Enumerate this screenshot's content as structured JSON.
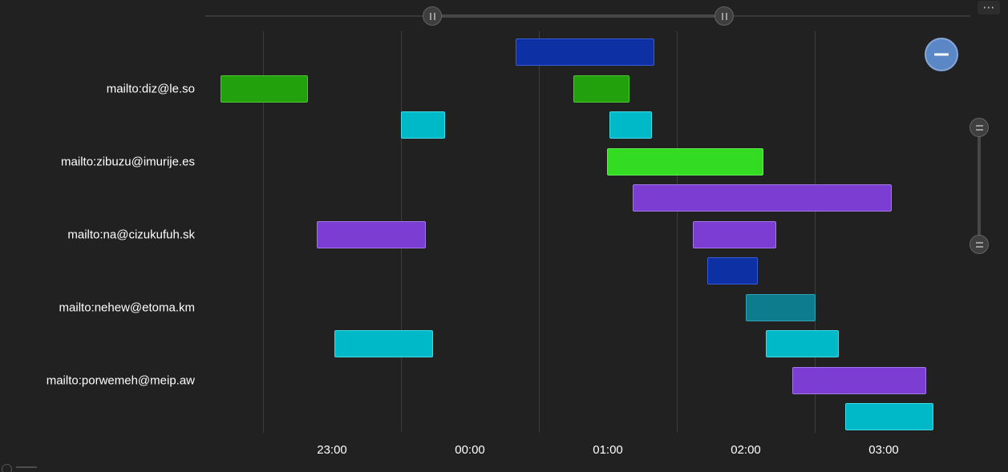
{
  "chart_data": {
    "type": "gantt",
    "title": "",
    "rows": [
      "mailto:diz@le.so",
      "mailto:zibuzu@imurije.es",
      "mailto:na@cizukufuh.sk",
      "mailto:nehew@etoma.km",
      "mailto:porwemeh@meip.aw"
    ],
    "label_lanes": [
      1,
      3,
      5,
      7,
      9
    ],
    "x_axis": {
      "ticks": [
        {
          "label": "23:00",
          "hour": 23
        },
        {
          "label": "00:00",
          "hour": 24
        },
        {
          "label": "01:00",
          "hour": 25
        },
        {
          "label": "02:00",
          "hour": 26
        },
        {
          "label": "03:00",
          "hour": 27
        }
      ],
      "gridline_hours": [
        22.5,
        23.5,
        24.5,
        25.5,
        26.5
      ],
      "visible_hour_range": [
        22.08,
        27.63
      ],
      "grid": true
    },
    "palette": {
      "blue": {
        "fill": "#0D31A5",
        "border": "#3B5BD6"
      },
      "green": {
        "fill": "#23A10D",
        "border": "#4CC935"
      },
      "cyan": {
        "fill": "#00B9C8",
        "border": "#3FDCE8"
      },
      "lime": {
        "fill": "#33DC23",
        "border": "#63EF54"
      },
      "purple": {
        "fill": "#7C3ED2",
        "border": "#A277E6"
      },
      "teal": {
        "fill": "#0D7C8C",
        "border": "#2FA3B4"
      }
    },
    "bars": [
      {
        "lane": 0,
        "color": "blue",
        "start": "00:20",
        "end": "01:20",
        "start_h": 24.331,
        "end_h": 25.337
      },
      {
        "lane": 1,
        "color": "green",
        "start": "22:12",
        "end": "22:50",
        "start_h": 22.192,
        "end_h": 22.826
      },
      {
        "lane": 1,
        "color": "green",
        "start": "00:45",
        "end": "01:09",
        "start_h": 24.75,
        "end_h": 25.157
      },
      {
        "lane": 2,
        "color": "cyan",
        "start": "23:30",
        "end": "23:49",
        "start_h": 23.5,
        "end_h": 23.82
      },
      {
        "lane": 2,
        "color": "cyan",
        "start": "01:01",
        "end": "01:19",
        "start_h": 25.012,
        "end_h": 25.32
      },
      {
        "lane": 3,
        "color": "lime",
        "start": "01:00",
        "end": "02:08",
        "start_h": 24.994,
        "end_h": 26.128
      },
      {
        "lane": 4,
        "color": "purple",
        "start": "01:11",
        "end": "03:03",
        "start_h": 25.18,
        "end_h": 27.058
      },
      {
        "lane": 5,
        "color": "purple",
        "start": "22:53",
        "end": "23:41",
        "start_h": 22.89,
        "end_h": 23.68
      },
      {
        "lane": 5,
        "color": "purple",
        "start": "01:37",
        "end": "02:13",
        "start_h": 25.616,
        "end_h": 26.221
      },
      {
        "lane": 6,
        "color": "blue",
        "start": "01:43",
        "end": "02:05",
        "start_h": 25.721,
        "end_h": 26.087
      },
      {
        "lane": 7,
        "color": "teal",
        "start": "02:00",
        "end": "02:30",
        "start_h": 26.0,
        "end_h": 26.506
      },
      {
        "lane": 8,
        "color": "cyan",
        "start": "23:01",
        "end": "23:44",
        "start_h": 23.017,
        "end_h": 23.733
      },
      {
        "lane": 8,
        "color": "cyan",
        "start": "02:09",
        "end": "02:40",
        "start_h": 26.145,
        "end_h": 26.674
      },
      {
        "lane": 9,
        "color": "purple",
        "start": "02:20",
        "end": "03:18",
        "start_h": 26.337,
        "end_h": 27.308
      },
      {
        "lane": 10,
        "color": "cyan",
        "start": "02:43",
        "end": "03:22",
        "start_h": 26.721,
        "end_h": 27.36
      }
    ],
    "legend_position": "none"
  },
  "controls": {
    "icons": {
      "export_menu": "ellipsis-icon",
      "zoom_out": "minus-icon",
      "x_grip": "vertical-grip-lines-icon",
      "y_grip": "horizontal-grip-lines-icon"
    },
    "export_glyph": "⋯"
  },
  "theme": {
    "background": "#212121",
    "gridline": "#3C3C3C",
    "text": "#FFFFFF",
    "zoom_button": "#5B87C7",
    "scrollbar_track": "#383838",
    "scrollbar_grip": "#3F3F3F"
  }
}
